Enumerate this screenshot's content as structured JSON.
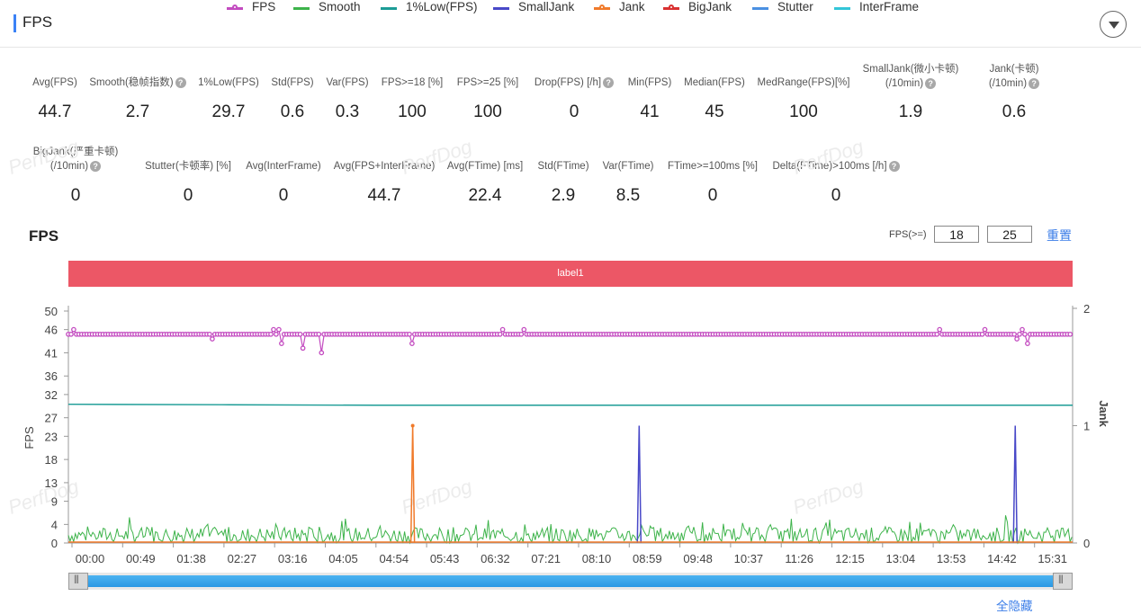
{
  "header": {
    "title": "FPS"
  },
  "metrics_row1": [
    {
      "label": "Avg(FPS)",
      "value": "44.7",
      "help": false
    },
    {
      "label": "Smooth(稳帧指数)",
      "value": "2.7",
      "help": true
    },
    {
      "label": "1%Low(FPS)",
      "value": "29.7",
      "help": false
    },
    {
      "label": "Std(FPS)",
      "value": "0.6",
      "help": false
    },
    {
      "label": "Var(FPS)",
      "value": "0.3",
      "help": false
    },
    {
      "label": "FPS>=18 [%]",
      "value": "100",
      "help": false
    },
    {
      "label": "FPS>=25 [%]",
      "value": "100",
      "help": false
    },
    {
      "label": "Drop(FPS) [/h]",
      "value": "0",
      "help": true
    },
    {
      "label": "Min(FPS)",
      "value": "41",
      "help": false
    },
    {
      "label": "Median(FPS)",
      "value": "45",
      "help": false
    },
    {
      "label": "MedRange(FPS)[%]",
      "value": "100",
      "help": false
    },
    {
      "label": "SmallJank(微小卡顿)",
      "label2": "(/10min)",
      "value": "1.9",
      "help": true
    },
    {
      "label": "Jank(卡顿)",
      "label2": "(/10min)",
      "value": "0.6",
      "help": true
    }
  ],
  "metrics_row2": [
    {
      "label": "BigJank(严重卡顿)",
      "label2": "(/10min)",
      "value": "0",
      "help": true
    },
    {
      "label": "Stutter(卡顿率) [%]",
      "value": "0",
      "help": false
    },
    {
      "label": "Avg(InterFrame)",
      "value": "0",
      "help": false
    },
    {
      "label": "Avg(FPS+InterFrame)",
      "value": "44.7",
      "help": false
    },
    {
      "label": "Avg(FTime) [ms]",
      "value": "22.4",
      "help": false
    },
    {
      "label": "Std(FTime)",
      "value": "2.9",
      "help": false
    },
    {
      "label": "Var(FTime)",
      "value": "8.5",
      "help": false
    },
    {
      "label": "FTime>=100ms [%]",
      "value": "0",
      "help": false
    },
    {
      "label": "Delta(FTime)>100ms [/h]",
      "value": "0",
      "help": true
    }
  ],
  "chart_section": {
    "title": "FPS",
    "fps_threshold_label": "FPS(>=)",
    "threshold_1": "18",
    "threshold_2": "25",
    "reset_label": "重置",
    "label_band": "label1",
    "hide_all_label": "全隐藏",
    "watermark": "PerfDog"
  },
  "legend": [
    {
      "name": "FPS",
      "color": "#c34bc0",
      "dot": true
    },
    {
      "name": "Smooth",
      "color": "#3db34a",
      "dot": false
    },
    {
      "name": "1%Low(FPS)",
      "color": "#1c9c96",
      "dot": false
    },
    {
      "name": "SmallJank",
      "color": "#4848c8",
      "dot": false
    },
    {
      "name": "Jank",
      "color": "#f07a2a",
      "dot": true
    },
    {
      "name": "BigJank",
      "color": "#d93030",
      "dot": true
    },
    {
      "name": "Stutter",
      "color": "#4a90e2",
      "dot": false
    },
    {
      "name": "InterFrame",
      "color": "#33c6d8",
      "dot": false
    }
  ],
  "chart_data": {
    "type": "line",
    "title": "FPS",
    "ylabel": "FPS",
    "y2label": "Jank",
    "y_ticks": [
      0,
      4,
      9,
      13,
      18,
      23,
      27,
      32,
      36,
      41,
      46,
      50
    ],
    "y2_ticks": [
      0,
      1,
      2
    ],
    "ylim": [
      0,
      50
    ],
    "y2lim": [
      0,
      2
    ],
    "x_ticks": [
      "00:00",
      "00:49",
      "01:38",
      "02:27",
      "03:16",
      "04:05",
      "04:54",
      "05:43",
      "06:32",
      "07:21",
      "08:10",
      "08:59",
      "09:48",
      "10:37",
      "11:26",
      "12:15",
      "13:04",
      "13:53",
      "14:42",
      "15:31"
    ],
    "x_range_seconds": [
      0,
      980
    ],
    "series": [
      {
        "name": "FPS",
        "axis": "left",
        "baseline": 45,
        "dips": [
          [
            140,
            44
          ],
          [
            208,
            43
          ],
          [
            228,
            42
          ],
          [
            248,
            41
          ],
          [
            336,
            43
          ],
          [
            925,
            44
          ],
          [
            935,
            43
          ]
        ],
        "peaks": [
          [
            5,
            46
          ],
          [
            200,
            46
          ],
          [
            205,
            46
          ],
          [
            425,
            46
          ],
          [
            445,
            46
          ],
          [
            850,
            46
          ],
          [
            895,
            46
          ],
          [
            930,
            46
          ]
        ]
      },
      {
        "name": "Smooth",
        "axis": "left",
        "typical": 2.7,
        "range": [
          0,
          6.5
        ]
      },
      {
        "name": "1%Low(FPS)",
        "axis": "left",
        "values": [
          [
            0,
            29.9
          ],
          [
            150,
            29.8
          ],
          [
            300,
            29.7
          ],
          [
            980,
            29.7
          ]
        ]
      },
      {
        "name": "SmallJank",
        "axis": "right",
        "spikes": [
          [
            557,
            1
          ],
          [
            924,
            1
          ]
        ]
      },
      {
        "name": "Jank",
        "axis": "right",
        "spikes": [
          [
            336,
            1
          ]
        ]
      },
      {
        "name": "BigJank",
        "axis": "right",
        "spikes": []
      },
      {
        "name": "Stutter",
        "axis": "right",
        "spikes": []
      },
      {
        "name": "InterFrame",
        "axis": "left",
        "values": [
          [
            0,
            0
          ],
          [
            980,
            0
          ]
        ]
      }
    ]
  }
}
